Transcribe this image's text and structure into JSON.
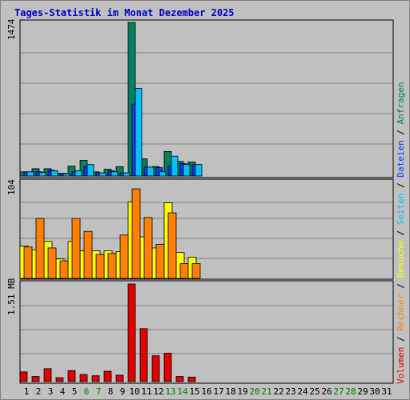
{
  "title": "Tages-Statistik im Monat Dezember 2025",
  "colors": {
    "background": "#c0c0c0",
    "title": "#0000cc",
    "grid": "#808080",
    "anfragen": "#008060",
    "dateien": "#0040ff",
    "seiten": "#00c0ff",
    "besuche": "#ffff00",
    "rechner": "#ff8000",
    "volumen": "#e00000",
    "weekday_label": "#000000",
    "weekend_label": "#008000"
  },
  "days": [
    "1",
    "2",
    "3",
    "4",
    "5",
    "6",
    "7",
    "8",
    "9",
    "10",
    "11",
    "12",
    "13",
    "14",
    "15",
    "16",
    "17",
    "18",
    "19",
    "20",
    "21",
    "22",
    "23",
    "24",
    "25",
    "26",
    "27",
    "28",
    "29",
    "30",
    "31"
  ],
  "weekend_days": [
    "6",
    "7",
    "13",
    "14",
    "20",
    "21",
    "27",
    "28"
  ],
  "legend": {
    "volumen": "Volumen",
    "rechner": "Rechner",
    "besuche": "Besuche",
    "seiten": "Seiten",
    "dateien": "Dateien",
    "anfragen": "Anfragen",
    "sep": " / "
  },
  "chart_data": [
    {
      "type": "bar",
      "panel": "anfragen-dateien-seiten",
      "ymax_label": "1474",
      "ylim": [
        0,
        1474
      ],
      "x": [
        "1",
        "2",
        "3",
        "4",
        "5",
        "6",
        "7",
        "8",
        "9",
        "10",
        "11",
        "12",
        "13",
        "14",
        "15"
      ],
      "series": [
        {
          "name": "Anfragen",
          "values": [
            40,
            70,
            70,
            25,
            95,
            150,
            40,
            65,
            90,
            1474,
            165,
            90,
            235,
            140,
            135
          ]
        },
        {
          "name": "Dateien",
          "values": [
            40,
            40,
            55,
            25,
            40,
            90,
            30,
            50,
            30,
            690,
            85,
            80,
            95,
            120,
            110
          ]
        },
        {
          "name": "Seiten",
          "values": [
            40,
            35,
            50,
            20,
            50,
            110,
            30,
            40,
            30,
            840,
            85,
            40,
            190,
            110,
            110
          ]
        }
      ]
    },
    {
      "type": "bar",
      "panel": "besuche-rechner",
      "ymax_label": "104",
      "ylim": [
        0,
        104
      ],
      "x": [
        "1",
        "2",
        "3",
        "4",
        "5",
        "6",
        "7",
        "8",
        "9",
        "10",
        "11",
        "12",
        "13",
        "14",
        "15"
      ],
      "series": [
        {
          "name": "Besuche",
          "values": [
            35,
            31,
            40,
            21,
            40,
            30,
            30,
            30,
            29,
            83,
            45,
            33,
            82,
            28,
            23
          ]
        },
        {
          "name": "Rechner",
          "values": [
            34,
            65,
            33,
            19,
            65,
            51,
            26,
            27,
            47,
            97,
            66,
            37,
            71,
            16,
            16
          ]
        }
      ]
    },
    {
      "type": "bar",
      "panel": "volumen",
      "ymax_label": "1.51 MB",
      "ylim": [
        0,
        1.51
      ],
      "x": [
        "1",
        "2",
        "3",
        "4",
        "5",
        "6",
        "7",
        "8",
        "9",
        "10",
        "11",
        "12",
        "13",
        "14",
        "15"
      ],
      "series": [
        {
          "name": "Volumen",
          "values": [
            0.15,
            0.08,
            0.2,
            0.06,
            0.17,
            0.11,
            0.09,
            0.16,
            0.1,
            1.51,
            0.82,
            0.4,
            0.44,
            0.08,
            0.07
          ]
        }
      ]
    }
  ]
}
